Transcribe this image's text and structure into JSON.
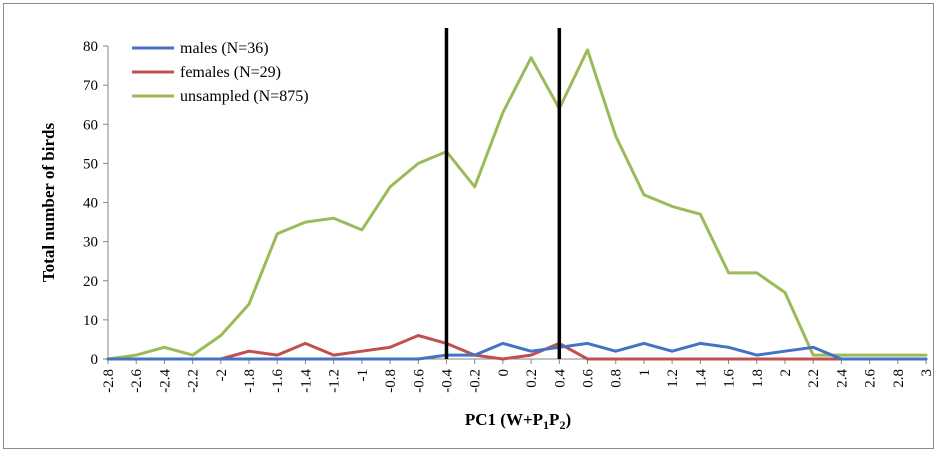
{
  "chart_data": {
    "type": "line",
    "title": "",
    "xlabel": "PC1 (W+P1P2)",
    "xlabel_parts": {
      "main": "PC1 (W+P",
      "sub1": "1",
      "mid": "P",
      "sub2": "2",
      "end": ")"
    },
    "ylabel": "Total number of birds",
    "ylim": [
      0,
      80
    ],
    "yticks": [
      0,
      10,
      20,
      30,
      40,
      50,
      60,
      70,
      80
    ],
    "xlim": [
      -2.8,
      3
    ],
    "categories": [
      "-2.8",
      "-2.6",
      "-2.4",
      "-2.2",
      "-2",
      "-1.8",
      "-1.6",
      "-1.4",
      "-1.2",
      "-1",
      "-0.8",
      "-0.6",
      "-0.4",
      "-0.2",
      "0",
      "0.2",
      "0.4",
      "0.6",
      "0.8",
      "1",
      "1.2",
      "1.4",
      "1.6",
      "1.8",
      "2",
      "2.2",
      "2.4",
      "2.6",
      "2.8",
      "3"
    ],
    "x": [
      -2.8,
      -2.6,
      -2.4,
      -2.2,
      -2.0,
      -1.8,
      -1.6,
      -1.4,
      -1.2,
      -1.0,
      -0.8,
      -0.6,
      -0.4,
      -0.2,
      0.0,
      0.2,
      0.4,
      0.6,
      0.8,
      1.0,
      1.2,
      1.4,
      1.6,
      1.8,
      2.0,
      2.2,
      2.4,
      2.6,
      2.8,
      3.0
    ],
    "series": [
      {
        "name": "males (N=36)",
        "color": "#4472C4",
        "values": [
          0,
          0,
          0,
          0,
          0,
          0,
          0,
          0,
          0,
          0,
          0,
          0,
          1,
          1,
          4,
          2,
          3,
          4,
          2,
          4,
          2,
          4,
          3,
          1,
          2,
          3,
          0,
          0,
          0,
          0
        ]
      },
      {
        "name": "females (N=29)",
        "color": "#C0504D",
        "values": [
          0,
          0,
          0,
          0,
          0,
          2,
          1,
          4,
          1,
          2,
          3,
          6,
          4,
          1,
          0,
          1,
          4,
          0,
          0,
          0,
          0,
          0,
          0,
          0,
          0,
          0,
          0,
          0,
          0,
          0
        ]
      },
      {
        "name": "unsampled (N=875)",
        "color": "#9BBB59",
        "values": [
          0,
          1,
          3,
          1,
          6,
          14,
          32,
          35,
          36,
          33,
          44,
          50,
          53,
          44,
          63,
          77,
          64,
          79,
          57,
          42,
          39,
          37,
          22,
          22,
          17,
          1,
          1,
          1,
          1,
          1
        ]
      }
    ],
    "reference_lines_x": [
      -0.4,
      0.4
    ],
    "reference_line_color": "#000000",
    "grid": false,
    "legend_position": "top-left"
  }
}
